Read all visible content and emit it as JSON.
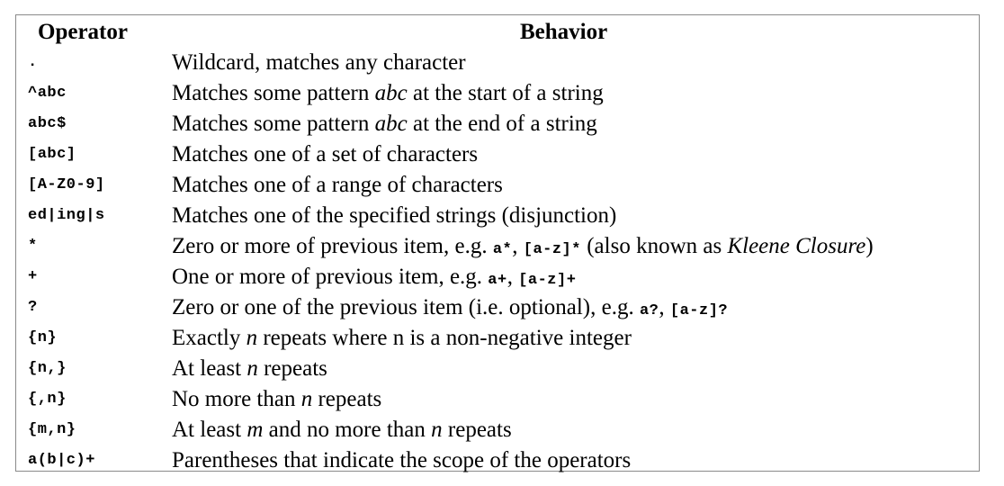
{
  "table": {
    "headers": {
      "operator": "Operator",
      "behavior": "Behavior"
    },
    "rows": [
      {
        "operator": ".",
        "behavior": [
          {
            "t": "Wildcard, matches any character"
          }
        ]
      },
      {
        "operator": "^abc",
        "behavior": [
          {
            "t": "Matches some pattern "
          },
          {
            "t": "abc",
            "s": "em"
          },
          {
            "t": " at the start of a string"
          }
        ]
      },
      {
        "operator": "abc$",
        "behavior": [
          {
            "t": "Matches some pattern "
          },
          {
            "t": "abc",
            "s": "em"
          },
          {
            "t": " at the end of a string"
          }
        ]
      },
      {
        "operator": "[abc]",
        "behavior": [
          {
            "t": "Matches one of a set of characters"
          }
        ]
      },
      {
        "operator": "[A-Z0-9]",
        "behavior": [
          {
            "t": "Matches one of a range of characters"
          }
        ]
      },
      {
        "operator": "ed|ing|s",
        "behavior": [
          {
            "t": "Matches one of the specified strings (disjunction)"
          }
        ]
      },
      {
        "operator": "*",
        "behavior": [
          {
            "t": "Zero or more of previous item, e.g. "
          },
          {
            "t": "a*",
            "s": "code"
          },
          {
            "t": ", "
          },
          {
            "t": "[a-z]*",
            "s": "code"
          },
          {
            "t": " (also known as "
          },
          {
            "t": "Kleene Closure",
            "s": "em"
          },
          {
            "t": ")"
          }
        ]
      },
      {
        "operator": "+",
        "behavior": [
          {
            "t": "One or more of previous item, e.g. "
          },
          {
            "t": "a+",
            "s": "code"
          },
          {
            "t": ", "
          },
          {
            "t": "[a-z]+",
            "s": "code"
          }
        ]
      },
      {
        "operator": "?",
        "behavior": [
          {
            "t": "Zero or one of the previous item (i.e. optional), e.g. "
          },
          {
            "t": "a?",
            "s": "code"
          },
          {
            "t": ", "
          },
          {
            "t": "[a-z]?",
            "s": "code"
          }
        ]
      },
      {
        "operator": "{n}",
        "behavior": [
          {
            "t": "Exactly "
          },
          {
            "t": "n",
            "s": "em"
          },
          {
            "t": " repeats where n is a non-negative integer"
          }
        ]
      },
      {
        "operator": "{n,}",
        "behavior": [
          {
            "t": "At least "
          },
          {
            "t": "n",
            "s": "em"
          },
          {
            "t": " repeats"
          }
        ]
      },
      {
        "operator": "{,n}",
        "behavior": [
          {
            "t": "No more than "
          },
          {
            "t": "n",
            "s": "em"
          },
          {
            "t": " repeats"
          }
        ]
      },
      {
        "operator": "{m,n}",
        "behavior": [
          {
            "t": "At least "
          },
          {
            "t": "m",
            "s": "em"
          },
          {
            "t": " and no more than "
          },
          {
            "t": "n",
            "s": "em"
          },
          {
            "t": " repeats"
          }
        ]
      },
      {
        "operator": "a(b|c)+",
        "behavior": [
          {
            "t": "Parentheses that indicate the scope of the operators"
          }
        ]
      }
    ]
  }
}
